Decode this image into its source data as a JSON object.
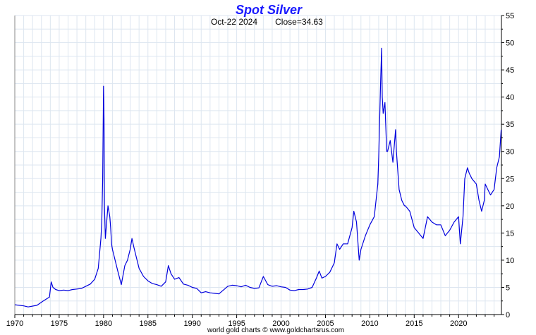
{
  "chart_data": {
    "type": "line",
    "title": "Spot Silver",
    "subtitle_date": "Oct-22  2024",
    "subtitle_close": "Close=34.63",
    "footer": "world gold charts © www.goldchartsrus.com",
    "x_tick_labels": [
      "1970",
      "1975",
      "1980",
      "1985",
      "1990",
      "1995",
      "2000",
      "2005",
      "2010",
      "2015",
      "2020"
    ],
    "y_tick_labels": [
      "0",
      "5",
      "10",
      "15",
      "20",
      "25",
      "30",
      "35",
      "40",
      "45",
      "50",
      "55"
    ],
    "xlim": [
      1970,
      2024.83
    ],
    "ylim": [
      0,
      55
    ],
    "grid": true,
    "colors": {
      "title": "#1a1aff",
      "line": "#0000dd",
      "grid": "#dde6f0",
      "axis": "#000000"
    },
    "series": [
      {
        "x": [
          1970.0,
          1971.0,
          1971.5,
          1972.5,
          1973.2,
          1973.9,
          1974.1,
          1974.3,
          1974.6,
          1975.0,
          1975.5,
          1976.0,
          1976.5,
          1977.0,
          1977.5,
          1978.0,
          1978.5,
          1979.0,
          1979.4,
          1979.7,
          1979.8,
          1979.9,
          1980.0,
          1980.05,
          1980.1,
          1980.2,
          1980.3,
          1980.5,
          1980.7,
          1980.8,
          1980.9,
          1981.0,
          1981.3,
          1981.6,
          1982.0,
          1982.4,
          1982.7,
          1983.0,
          1983.2,
          1983.4,
          1983.7,
          1984.0,
          1984.5,
          1985.0,
          1985.5,
          1986.0,
          1986.5,
          1987.0,
          1987.3,
          1987.6,
          1988.0,
          1988.5,
          1989.0,
          1989.5,
          1990.0,
          1990.5,
          1991.0,
          1991.5,
          1992.0,
          1992.5,
          1993.0,
          1993.5,
          1994.0,
          1994.5,
          1995.0,
          1995.5,
          1996.0,
          1996.5,
          1997.0,
          1997.5,
          1998.0,
          1998.5,
          1999.0,
          1999.5,
          2000.0,
          2000.5,
          2001.0,
          2001.5,
          2002.0,
          2002.5,
          2003.0,
          2003.5,
          2004.0,
          2004.3,
          2004.6,
          2005.0,
          2005.5,
          2006.0,
          2006.3,
          2006.6,
          2007.0,
          2007.5,
          2008.0,
          2008.2,
          2008.5,
          2008.8,
          2009.0,
          2009.5,
          2010.0,
          2010.5,
          2010.9,
          2011.0,
          2011.2,
          2011.33,
          2011.4,
          2011.5,
          2011.7,
          2011.9,
          2012.0,
          2012.3,
          2012.6,
          2012.9,
          2013.0,
          2013.3,
          2013.6,
          2013.9,
          2014.0,
          2014.5,
          2015.0,
          2015.5,
          2016.0,
          2016.5,
          2017.0,
          2017.5,
          2018.0,
          2018.5,
          2019.0,
          2019.5,
          2020.0,
          2020.2,
          2020.5,
          2020.7,
          2021.0,
          2021.2,
          2021.5,
          2022.0,
          2022.3,
          2022.6,
          2022.9,
          2023.0,
          2023.3,
          2023.6,
          2024.0,
          2024.3,
          2024.6,
          2024.8
        ],
        "y": [
          1.8,
          1.6,
          1.4,
          1.7,
          2.5,
          3.2,
          6.0,
          5.0,
          4.6,
          4.4,
          4.5,
          4.4,
          4.6,
          4.7,
          4.8,
          5.2,
          5.6,
          6.5,
          8.5,
          14.0,
          17.0,
          25.0,
          42.0,
          36.0,
          20.0,
          14.0,
          16.0,
          20.0,
          18.0,
          16.0,
          13.0,
          12.0,
          10.0,
          8.0,
          5.5,
          9.0,
          10.0,
          12.0,
          14.0,
          12.5,
          10.5,
          8.5,
          7.0,
          6.2,
          5.7,
          5.5,
          5.2,
          6.0,
          9.0,
          7.5,
          6.5,
          6.8,
          5.6,
          5.4,
          5.0,
          4.8,
          4.0,
          4.2,
          4.0,
          3.9,
          3.8,
          4.5,
          5.2,
          5.4,
          5.3,
          5.1,
          5.4,
          5.0,
          4.8,
          4.9,
          7.0,
          5.5,
          5.2,
          5.3,
          5.1,
          5.0,
          4.5,
          4.4,
          4.6,
          4.6,
          4.7,
          5.0,
          6.8,
          8.0,
          6.7,
          7.0,
          7.8,
          9.5,
          13.0,
          12.0,
          13.0,
          13.0,
          16.0,
          19.0,
          17.0,
          10.0,
          12.0,
          14.5,
          16.5,
          18.0,
          24.0,
          29.0,
          42.0,
          49.0,
          40.0,
          37.0,
          39.0,
          30.0,
          30.0,
          32.0,
          28.0,
          34.0,
          30.0,
          23.0,
          21.0,
          20.0,
          20.0,
          19.0,
          16.0,
          15.0,
          14.0,
          18.0,
          17.0,
          16.5,
          16.5,
          14.5,
          15.5,
          17.0,
          18.0,
          13.0,
          18.0,
          25.0,
          27.0,
          26.0,
          25.0,
          24.0,
          21.0,
          19.0,
          21.0,
          24.0,
          23.0,
          22.0,
          23.0,
          27.0,
          29.0,
          34.0
        ]
      }
    ]
  }
}
